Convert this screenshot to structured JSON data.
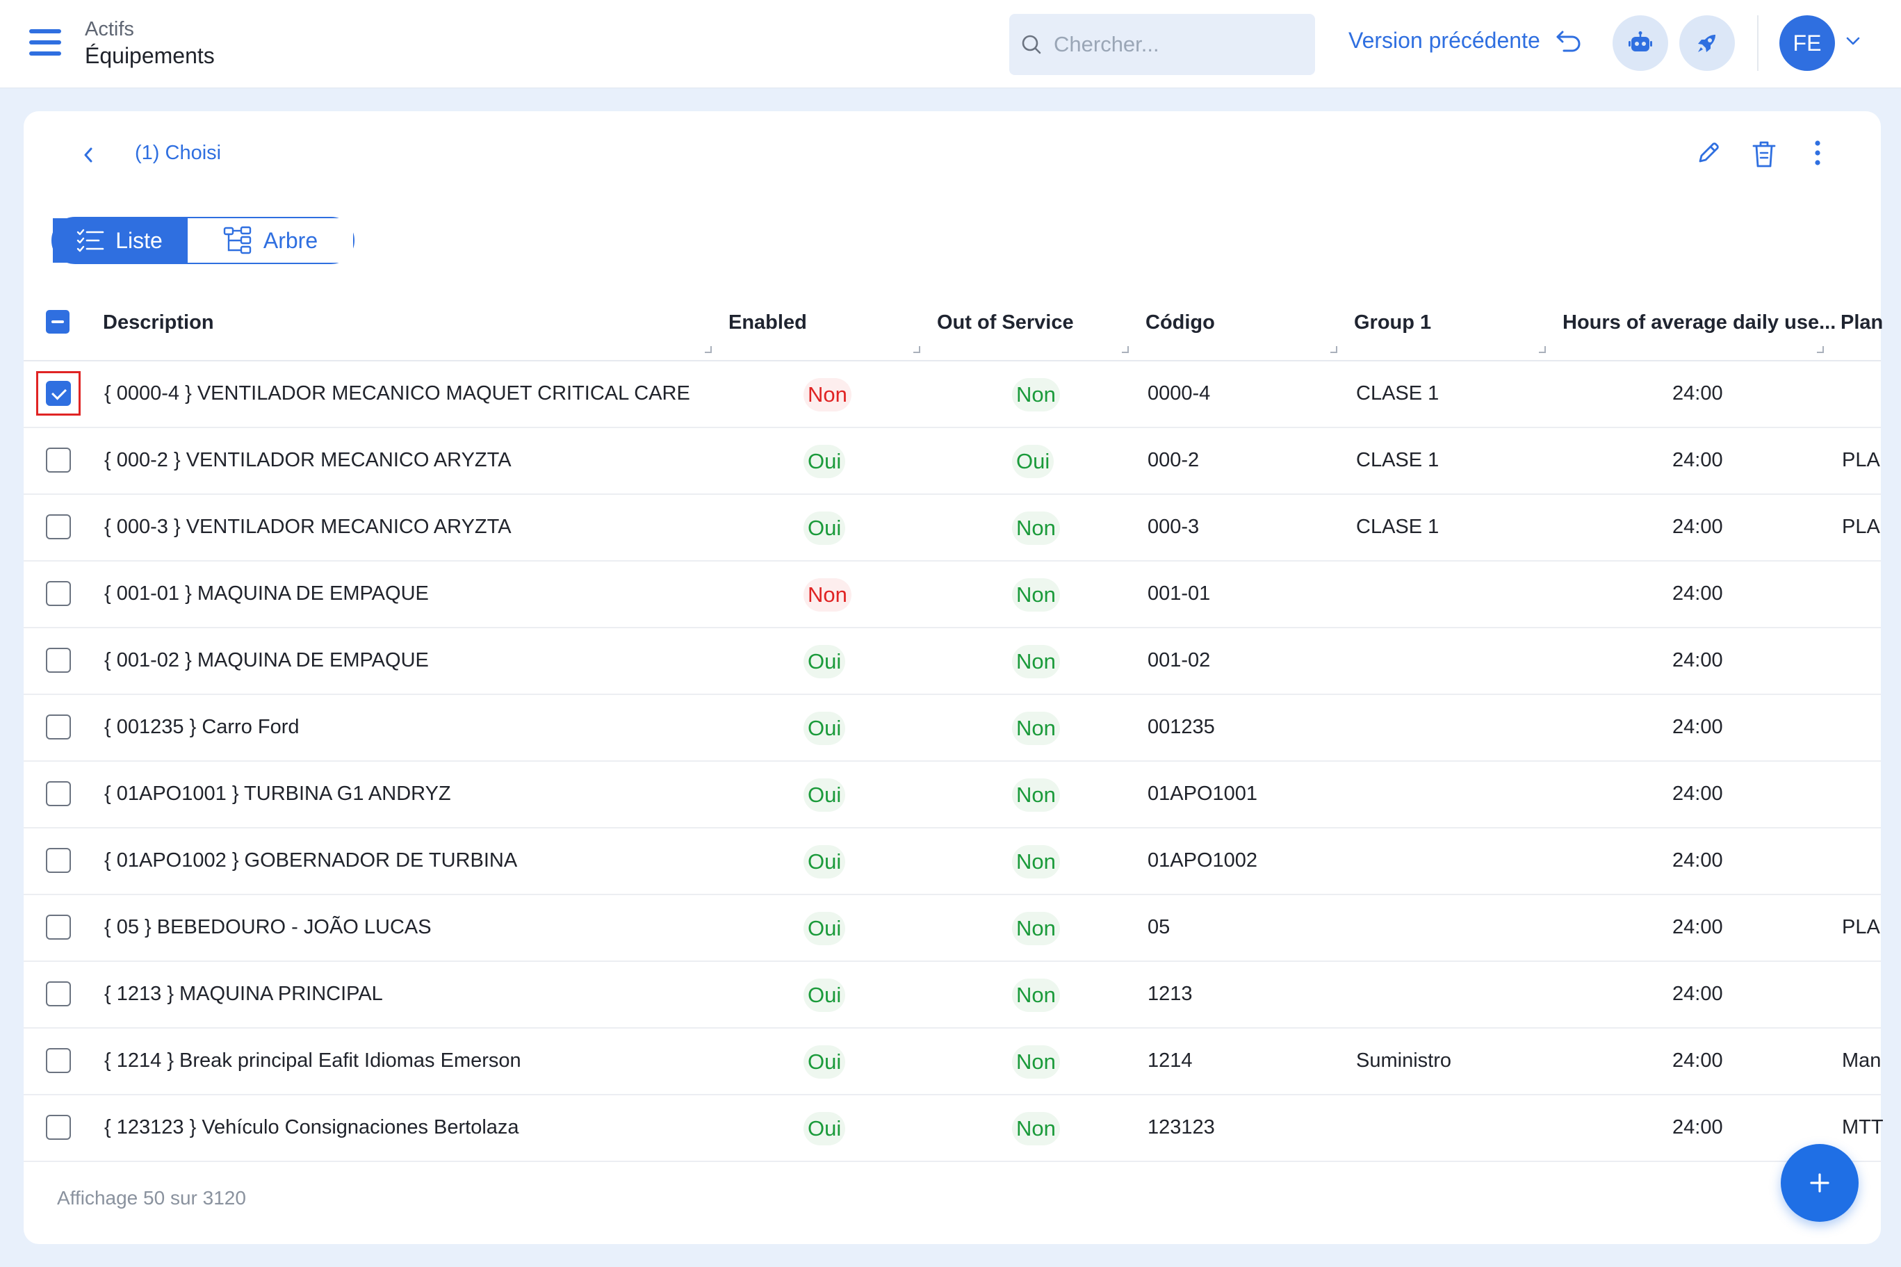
{
  "header": {
    "breadcrumb_parent": "Actifs",
    "breadcrumb_current": "Équipements",
    "search_placeholder": "Chercher...",
    "previous_version_label": "Version précédente",
    "avatar_initials": "FE"
  },
  "toolbar": {
    "selection_label": "(1) Choisi"
  },
  "view_toggle": {
    "list_label": "Liste",
    "tree_label": "Arbre"
  },
  "table": {
    "columns": {
      "description": "Description",
      "enabled": "Enabled",
      "out_of_service": "Out of Service",
      "code": "Código",
      "group1": "Group 1",
      "hours": "Hours of average daily use...",
      "plan": "Plan"
    },
    "rows": [
      {
        "description": "{ 0000-4 } VENTILADOR MECANICO MAQUET CRITICAL CARE",
        "enabled": "Non",
        "out_of_service": "Non",
        "code": "0000-4",
        "group1": "CLASE 1",
        "hours": "24:00",
        "plan": "",
        "checked": true
      },
      {
        "description": "{ 000-2 } VENTILADOR MECANICO ARYZTA",
        "enabled": "Oui",
        "out_of_service": "Oui",
        "code": "000-2",
        "group1": "CLASE 1",
        "hours": "24:00",
        "plan": "PLA",
        "checked": false
      },
      {
        "description": "{ 000-3 } VENTILADOR MECANICO ARYZTA",
        "enabled": "Oui",
        "out_of_service": "Non",
        "code": "000-3",
        "group1": "CLASE 1",
        "hours": "24:00",
        "plan": "PLA",
        "checked": false
      },
      {
        "description": "{ 001-01 } MAQUINA DE EMPAQUE",
        "enabled": "Non",
        "out_of_service": "Non",
        "code": "001-01",
        "group1": "",
        "hours": "24:00",
        "plan": "",
        "checked": false
      },
      {
        "description": "{ 001-02 } MAQUINA DE EMPAQUE",
        "enabled": "Oui",
        "out_of_service": "Non",
        "code": "001-02",
        "group1": "",
        "hours": "24:00",
        "plan": "",
        "checked": false
      },
      {
        "description": "{ 001235 } Carro Ford",
        "enabled": "Oui",
        "out_of_service": "Non",
        "code": "001235",
        "group1": "",
        "hours": "24:00",
        "plan": "",
        "checked": false
      },
      {
        "description": "{ 01APO1001 } TURBINA G1 ANDRYZ",
        "enabled": "Oui",
        "out_of_service": "Non",
        "code": "01APO1001",
        "group1": "",
        "hours": "24:00",
        "plan": "",
        "checked": false
      },
      {
        "description": "{ 01APO1002 } GOBERNADOR DE TURBINA",
        "enabled": "Oui",
        "out_of_service": "Non",
        "code": "01APO1002",
        "group1": "",
        "hours": "24:00",
        "plan": "",
        "checked": false
      },
      {
        "description": "{ 05 } BEBEDOURO - JOÃO LUCAS",
        "enabled": "Oui",
        "out_of_service": "Non",
        "code": "05",
        "group1": "",
        "hours": "24:00",
        "plan": "PLA",
        "checked": false
      },
      {
        "description": "{ 1213 } MAQUINA PRINCIPAL",
        "enabled": "Oui",
        "out_of_service": "Non",
        "code": "1213",
        "group1": "",
        "hours": "24:00",
        "plan": "",
        "checked": false
      },
      {
        "description": "{ 1214 } Break principal Eafit Idiomas Emerson",
        "enabled": "Oui",
        "out_of_service": "Non",
        "code": "1214",
        "group1": "Suministro",
        "hours": "24:00",
        "plan": "Man",
        "checked": false
      },
      {
        "description": "{ 123123 } Vehículo Consignaciones Bertolaza",
        "enabled": "Oui",
        "out_of_service": "Non",
        "code": "123123",
        "group1": "",
        "hours": "24:00",
        "plan": "MTT",
        "checked": false
      }
    ]
  },
  "footer": {
    "summary": "Affichage 50 sur 3120"
  },
  "colors": {
    "accent": "#2f6fe0",
    "positive": "#1a9a3a",
    "negative": "#e02424",
    "selection_highlight": "#e02424"
  },
  "icons": {
    "menu": "hamburger-icon",
    "search": "search-icon",
    "undo": "undo-icon",
    "robot": "robot-icon",
    "rocket": "rocket-icon",
    "chevron_down": "chevron-down-icon",
    "back": "chevron-left-icon",
    "edit": "pencil-icon",
    "delete": "trash-icon",
    "more": "more-vertical-icon",
    "list": "list-icon",
    "tree": "tree-icon",
    "add": "plus-icon"
  }
}
